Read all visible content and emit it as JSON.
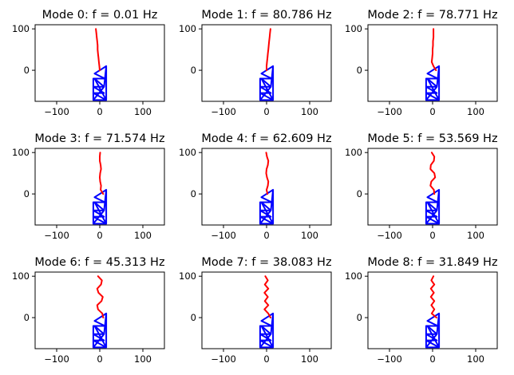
{
  "chart_data": [
    {
      "type": "line",
      "title": "Mode 0: f = 0.01 Hz",
      "xlim": [
        -150,
        150
      ],
      "ylim": [
        -75,
        110
      ],
      "xticks": [
        -100,
        0,
        100
      ],
      "yticks": [
        0,
        100
      ],
      "xtick_labels": [
        "−100",
        "0",
        "100"
      ],
      "ytick_labels": [
        "0",
        "100"
      ],
      "cable_offsets": [
        -9,
        -8,
        -7,
        -6,
        -5,
        -5,
        -4,
        -3,
        -2,
        -1,
        0
      ],
      "truss_color": "#0000ff",
      "cable_color": "#ff0000"
    },
    {
      "type": "line",
      "title": "Mode 1: f = 80.786 Hz",
      "xlim": [
        -150,
        150
      ],
      "ylim": [
        -75,
        110
      ],
      "xticks": [
        -100,
        0,
        100
      ],
      "yticks": [
        0,
        100
      ],
      "xtick_labels": [
        "−100",
        "0",
        "100"
      ],
      "ytick_labels": [
        "0",
        "100"
      ],
      "cable_offsets": [
        9,
        8,
        7,
        6,
        5,
        4,
        3,
        2,
        1,
        0,
        0
      ],
      "truss_color": "#0000ff",
      "cable_color": "#ff0000"
    },
    {
      "type": "line",
      "title": "Mode 2: f = 78.771 Hz",
      "xlim": [
        -150,
        150
      ],
      "ylim": [
        -75,
        110
      ],
      "xticks": [
        -100,
        0,
        100
      ],
      "yticks": [
        0,
        100
      ],
      "xtick_labels": [
        "−100",
        "0",
        "100"
      ],
      "ytick_labels": [
        "0",
        "100"
      ],
      "cable_offsets": [
        2,
        2,
        2,
        1,
        1,
        0,
        0,
        -1,
        -2,
        2,
        8
      ],
      "truss_color": "#0000ff",
      "cable_color": "#ff0000"
    },
    {
      "type": "line",
      "title": "Mode 3: f = 71.574 Hz",
      "xlim": [
        -150,
        150
      ],
      "ylim": [
        -75,
        110
      ],
      "xticks": [
        -100,
        0,
        100
      ],
      "yticks": [
        0,
        100
      ],
      "xtick_labels": [
        "−100",
        "0",
        "100"
      ],
      "ytick_labels": [
        "0",
        "100"
      ],
      "cable_offsets": [
        1,
        0,
        0,
        2,
        3,
        1,
        0,
        1,
        3,
        2,
        8
      ],
      "truss_color": "#0000ff",
      "cable_color": "#ff0000"
    },
    {
      "type": "line",
      "title": "Mode 4: f = 62.609 Hz",
      "xlim": [
        -150,
        150
      ],
      "ylim": [
        -75,
        110
      ],
      "xticks": [
        -100,
        0,
        100
      ],
      "yticks": [
        0,
        100
      ],
      "xtick_labels": [
        "−100",
        "0",
        "100"
      ],
      "ytick_labels": [
        "0",
        "100"
      ],
      "cable_offsets": [
        -1,
        1,
        4,
        3,
        0,
        -1,
        1,
        4,
        3,
        0,
        2
      ],
      "truss_color": "#0000ff",
      "cable_color": "#ff0000"
    },
    {
      "type": "line",
      "title": "Mode 5: f = 53.569 Hz",
      "xlim": [
        -150,
        150
      ],
      "ylim": [
        -75,
        110
      ],
      "xticks": [
        -100,
        0,
        100
      ],
      "yticks": [
        0,
        100
      ],
      "xtick_labels": [
        "−100",
        "0",
        "100"
      ],
      "ytick_labels": [
        "0",
        "100"
      ],
      "cable_offsets": [
        -2,
        4,
        3,
        -4,
        -5,
        4,
        6,
        -3,
        -5,
        3,
        4
      ],
      "truss_color": "#0000ff",
      "cable_color": "#ff0000"
    },
    {
      "type": "line",
      "title": "Mode 6: f = 45.313 Hz",
      "xlim": [
        -150,
        150
      ],
      "ylim": [
        -75,
        110
      ],
      "xticks": [
        -100,
        0,
        100
      ],
      "yticks": [
        0,
        100
      ],
      "xtick_labels": [
        "−100",
        "0",
        "100"
      ],
      "ytick_labels": [
        "0",
        "100"
      ],
      "cable_offsets": [
        -4,
        5,
        3,
        -6,
        -3,
        7,
        4,
        -6,
        -4,
        6,
        8
      ],
      "truss_color": "#0000ff",
      "cable_color": "#ff0000"
    },
    {
      "type": "line",
      "title": "Mode 7: f = 38.083 Hz",
      "xlim": [
        -150,
        150
      ],
      "ylim": [
        -75,
        110
      ],
      "xticks": [
        -100,
        0,
        100
      ],
      "yticks": [
        0,
        100
      ],
      "xtick_labels": [
        "−100",
        "0",
        "100"
      ],
      "ytick_labels": [
        "0",
        "100"
      ],
      "cable_offsets": [
        -3,
        3,
        -4,
        4,
        -5,
        3,
        -4,
        4,
        -5,
        4,
        9
      ],
      "truss_color": "#0000ff",
      "cable_color": "#ff0000"
    },
    {
      "type": "line",
      "title": "Mode 8: f = 31.849 Hz",
      "xlim": [
        -150,
        150
      ],
      "ylim": [
        -75,
        110
      ],
      "xticks": [
        -100,
        0,
        100
      ],
      "yticks": [
        0,
        100
      ],
      "xtick_labels": [
        "−100",
        "0",
        "100"
      ],
      "ytick_labels": [
        "0",
        "100"
      ],
      "cable_offsets": [
        2,
        -3,
        4,
        -4,
        3,
        -4,
        4,
        -3,
        4,
        -2,
        9
      ],
      "truss_color": "#0000ff",
      "cable_color": "#ff0000"
    }
  ]
}
